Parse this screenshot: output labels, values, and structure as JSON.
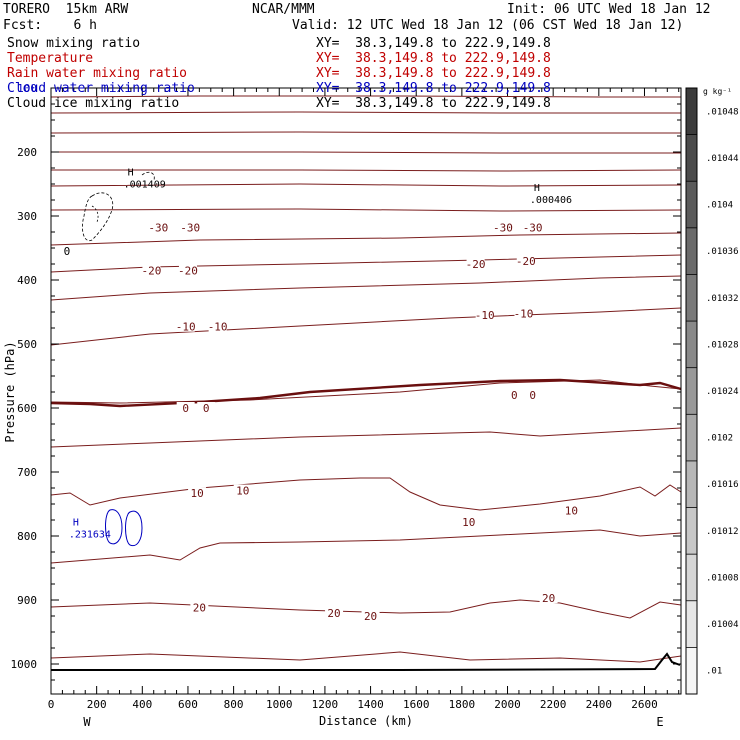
{
  "header": {
    "model": "TORERO  15km ARW",
    "forecast": "Fcst:    6 h",
    "center": "NCAR/MMM",
    "init": "Init: 06 UTC Wed 18 Jan 12",
    "valid": "Valid: 12 UTC Wed 18 Jan 12 (06 CST Wed 18 Jan 12)"
  },
  "fields": [
    {
      "name": "Snow mixing ratio",
      "xy": "XY=  38.3,149.8 to 222.9,149.8",
      "color": "#000000"
    },
    {
      "name": "Temperature",
      "xy": "XY=  38.3,149.8 to 222.9,149.8",
      "color": "#c00000"
    },
    {
      "name": "Rain water mixing ratio",
      "xy": "XY=  38.3,149.8 to 222.9,149.8",
      "color": "#c00000"
    },
    {
      "name": "Cloud water mixing ratio",
      "xy": "XY=  38.3,149.8 to 222.9,149.8",
      "color": "#0000c0"
    },
    {
      "name": "Cloud ice mixing ratio",
      "xy": "XY=  38.3,149.8 to 222.9,149.8",
      "color": "#000000"
    }
  ],
  "chart_data": {
    "type": "cross-section contour",
    "xlabel": "Distance (km)",
    "ylabel": "Pressure (hPa)",
    "xlim": [
      0,
      2760
    ],
    "ylim": [
      1050,
      100
    ],
    "x_ticks": [
      0,
      200,
      400,
      600,
      800,
      1000,
      1200,
      1400,
      1600,
      1800,
      2000,
      2200,
      2400,
      2600
    ],
    "y_ticks": [
      200,
      300,
      400,
      500,
      600,
      700,
      800,
      900,
      1000
    ],
    "top_y_label": "100",
    "x_ends": [
      "W",
      "E"
    ],
    "colorbar": {
      "unit": "g kg⁻¹",
      "labels": [
        ".01048",
        ".01044",
        ".0104",
        ".01036",
        ".01032",
        ".01028",
        ".01024",
        ".0102",
        ".01016",
        ".01012",
        ".01008",
        ".01004",
        ".01"
      ]
    },
    "temperature_labels": [
      {
        "text": "-30",
        "x": 470,
        "p": 318
      },
      {
        "text": "-30",
        "x": 610,
        "p": 318
      },
      {
        "text": "-30",
        "x": 1980,
        "p": 318
      },
      {
        "text": "-30",
        "x": 2110,
        "p": 318
      },
      {
        "text": "-20",
        "x": 440,
        "p": 385
      },
      {
        "text": "-20",
        "x": 600,
        "p": 385
      },
      {
        "text": "-20",
        "x": 1860,
        "p": 375
      },
      {
        "text": "-20",
        "x": 2080,
        "p": 370
      },
      {
        "text": "-10",
        "x": 590,
        "p": 473
      },
      {
        "text": "-10",
        "x": 730,
        "p": 473
      },
      {
        "text": "-10",
        "x": 1900,
        "p": 455
      },
      {
        "text": "-10",
        "x": 2070,
        "p": 452
      },
      {
        "text": "0",
        "x": 590,
        "p": 600
      },
      {
        "text": "0",
        "x": 680,
        "p": 600
      },
      {
        "text": "0",
        "x": 2030,
        "p": 580
      },
      {
        "text": "0",
        "x": 2110,
        "p": 580
      },
      {
        "text": "10",
        "x": 640,
        "p": 733
      },
      {
        "text": "10",
        "x": 840,
        "p": 729
      },
      {
        "text": "10",
        "x": 1830,
        "p": 778
      },
      {
        "text": "10",
        "x": 2280,
        "p": 760
      },
      {
        "text": "20",
        "x": 650,
        "p": 912
      },
      {
        "text": "20",
        "x": 1240,
        "p": 920
      },
      {
        "text": "20",
        "x": 1400,
        "p": 925
      },
      {
        "text": "20",
        "x": 2180,
        "p": 897
      }
    ],
    "extrema": [
      {
        "symbol": "H",
        "value": ".001409",
        "x": 340,
        "p": 243,
        "field": "Snow mixing ratio"
      },
      {
        "symbol": "H",
        "value": ".000406",
        "x": 2120,
        "p": 267,
        "field": "Snow mixing ratio"
      },
      {
        "symbol": "H",
        "value": ".231634",
        "x": 100,
        "p": 790,
        "field": "Cloud water mixing ratio"
      }
    ],
    "ice_contour_label": {
      "text": "0",
      "x": 70,
      "p": 355
    }
  }
}
